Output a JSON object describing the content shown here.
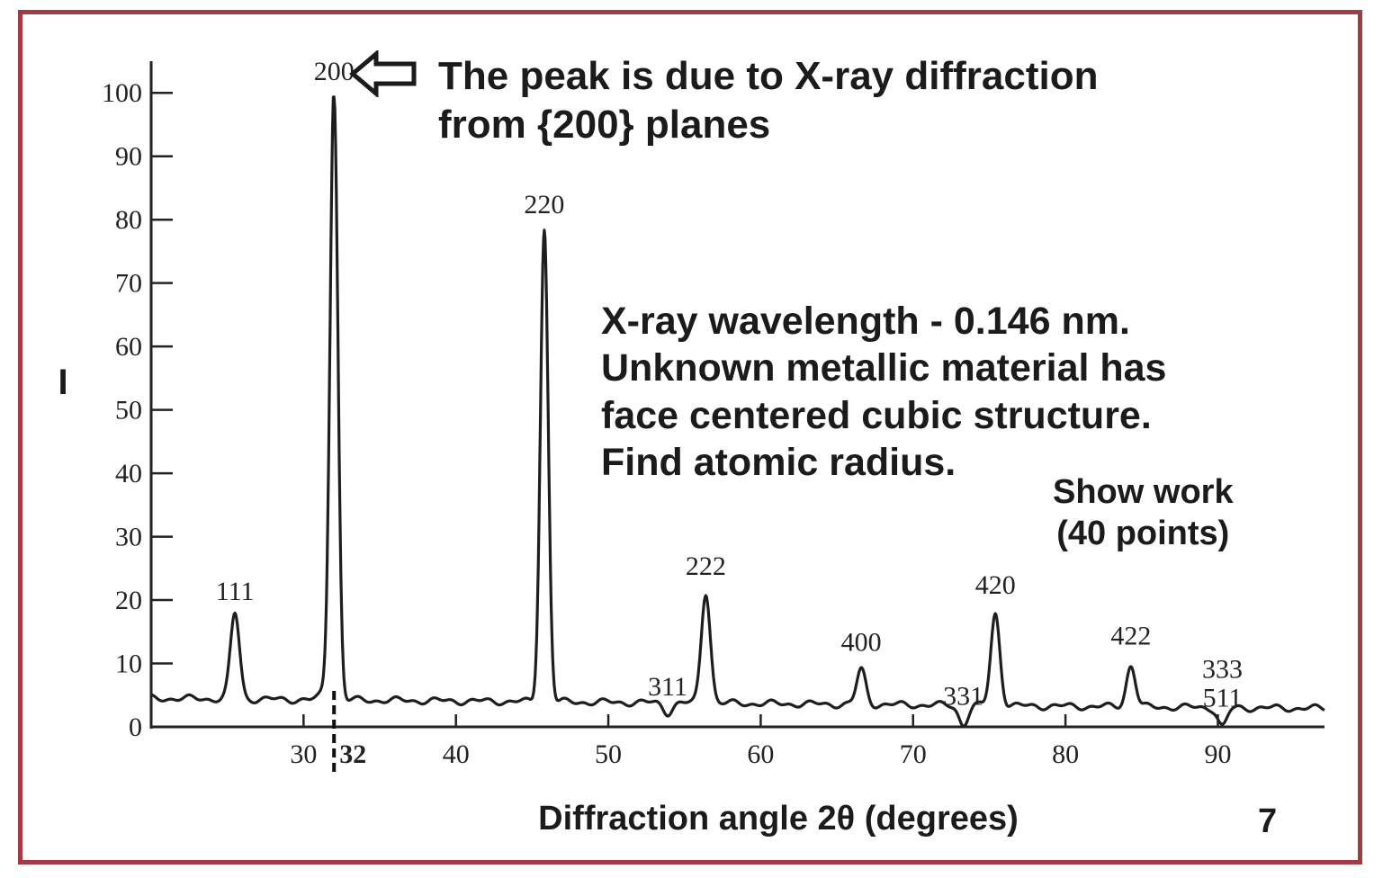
{
  "chart_data": {
    "type": "line",
    "xlabel": "Diffraction angle 2θ (degrees)",
    "ylabel": "I",
    "xlim": [
      20,
      97
    ],
    "ylim": [
      0,
      105
    ],
    "x_ticks": [
      30,
      40,
      50,
      60,
      70,
      80,
      90
    ],
    "x_tick_labels": [
      "30",
      "40",
      "50",
      "60",
      "70",
      "80",
      "90"
    ],
    "x_extra_tick": {
      "value": 32,
      "label": "32"
    },
    "y_ticks": [
      0,
      10,
      20,
      30,
      40,
      50,
      60,
      70,
      80,
      90,
      100
    ],
    "y_tick_labels": [
      "0",
      "10",
      "20",
      "30",
      "40",
      "50",
      "60",
      "70",
      "80",
      "90",
      "100"
    ],
    "baseline": 4.5,
    "peaks": [
      {
        "label": "111",
        "x": 25.5,
        "y": 18
      },
      {
        "label": "200",
        "x": 32.0,
        "y": 100
      },
      {
        "label": "220",
        "x": 45.8,
        "y": 79
      },
      {
        "label": "311",
        "x": 53.9,
        "y": 3
      },
      {
        "label": "222",
        "x": 56.4,
        "y": 22
      },
      {
        "label": "400",
        "x": 66.6,
        "y": 10
      },
      {
        "label": "331",
        "x": 73.3,
        "y": 1.5
      },
      {
        "label": "420",
        "x": 75.4,
        "y": 19
      },
      {
        "label": "422",
        "x": 84.3,
        "y": 11
      },
      {
        "label": "333\n511",
        "x": 90.3,
        "y": 1.5
      }
    ],
    "grid": false
  },
  "annotations": {
    "peak_note": [
      "The peak is due to X-ray diffraction",
      "from {200} planes"
    ],
    "problem": [
      "X-ray wavelength - 0.146 nm.",
      "Unknown metallic material has",
      "face centered cubic structure.",
      "Find atomic radius."
    ],
    "show_work": [
      "Show work",
      "(40 points)"
    ]
  },
  "slide_number": "7",
  "colors": {
    "frame": "#a23a46",
    "ink": "#1b1b1b"
  },
  "icons": {
    "pointer": "left-arrow-outline-icon"
  }
}
